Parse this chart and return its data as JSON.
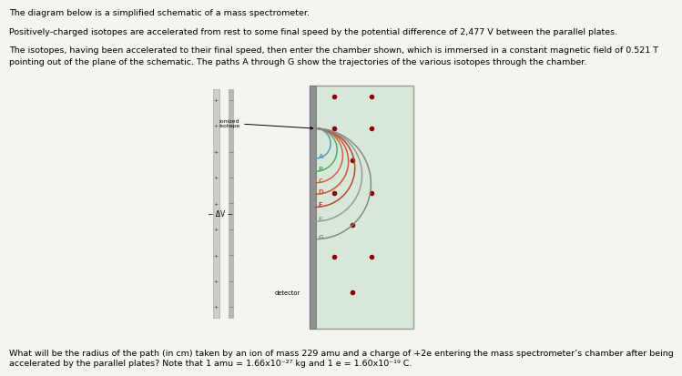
{
  "line1": "The diagram below is a simplified schematic of a mass spectrometer.",
  "line2": "Positively-charged isotopes are accelerated from rest to some final speed by the potential difference of 2,477 V between the parallel plates.",
  "line3a": "The isotopes, having been accelerated to their final speed, then enter the chamber shown, which is immersed in a constant magnetic field of 0.521 T",
  "line3b": "pointing out of the plane of the schematic. The paths A through G show the trajectories of the various isotopes through the chamber.",
  "question1": "What will be the radius of the path (in cm) taken by an ion of mass 229 amu and a charge of +2e entering the mass spectrometer’s chamber after being",
  "question2": "accelerated by the parallel plates? Note that 1 amu = 1.66x10⁻²⁷ kg and 1 e = 1.60x10⁻¹⁹ C.",
  "bg_color": "#f5f4f0",
  "chamber_bg": "#d8e8d8",
  "chamber_edge": "#999999",
  "plate1_color": "#cccccc",
  "plate2_color": "#b8b8b8",
  "detector_color": "#909090",
  "dot_color": "#880000",
  "arc_colors": [
    "#5599bb",
    "#55aa66",
    "#cc6644",
    "#cc5533",
    "#bb4433",
    "#999999",
    "#888888"
  ],
  "arc_labels": [
    "A",
    "B",
    "C",
    "D",
    "E",
    "F",
    "G"
  ],
  "arc_radii": [
    0.42,
    0.6,
    0.76,
    0.92,
    1.1,
    1.3,
    1.55
  ],
  "text_fs": 6.8,
  "label_fs": 5.5
}
